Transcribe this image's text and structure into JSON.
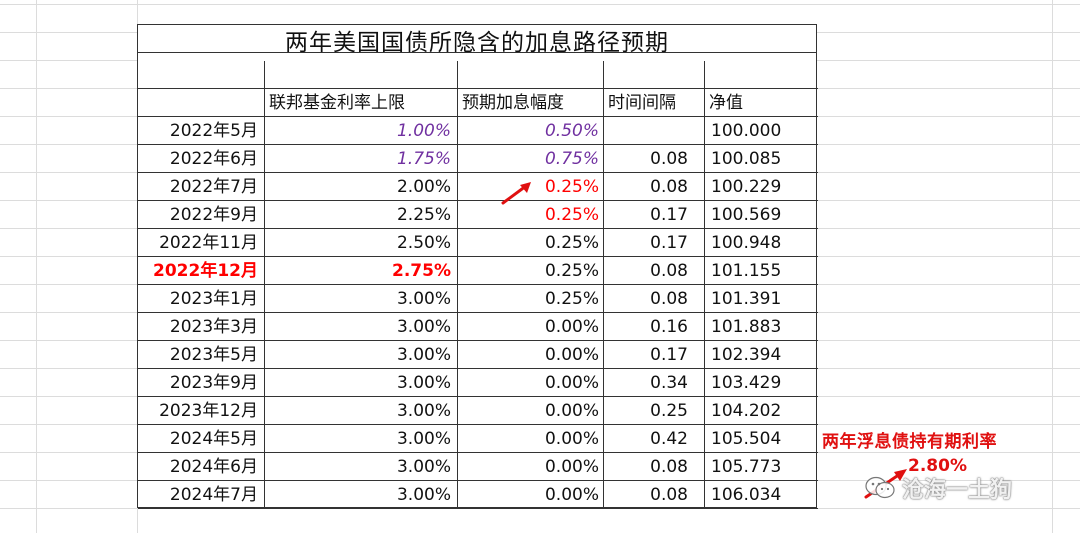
{
  "title": "两年美国国债所隐含的加息路径预期",
  "headers": [
    "",
    "联邦基金利率上限",
    "预期加息幅度",
    "时间间隔",
    "净值"
  ],
  "rows": [
    {
      "date": "2022年5月",
      "rate": "1.00%",
      "hike": "0.50%",
      "interval": "",
      "nav": "100.000"
    },
    {
      "date": "2022年6月",
      "rate": "1.75%",
      "hike": "0.75%",
      "interval": "0.08",
      "nav": "100.085"
    },
    {
      "date": "2022年7月",
      "rate": "2.00%",
      "hike": "0.25%",
      "interval": "0.08",
      "nav": "100.229"
    },
    {
      "date": "2022年9月",
      "rate": "2.25%",
      "hike": "0.25%",
      "interval": "0.17",
      "nav": "100.569"
    },
    {
      "date": "2022年11月",
      "rate": "2.50%",
      "hike": "0.25%",
      "interval": "0.17",
      "nav": "100.948"
    },
    {
      "date": "2022年12月",
      "rate": "2.75%",
      "hike": "0.25%",
      "interval": "0.08",
      "nav": "101.155"
    },
    {
      "date": "2023年1月",
      "rate": "3.00%",
      "hike": "0.25%",
      "interval": "0.08",
      "nav": "101.391"
    },
    {
      "date": "2023年3月",
      "rate": "3.00%",
      "hike": "0.00%",
      "interval": "0.16",
      "nav": "101.883"
    },
    {
      "date": "2023年5月",
      "rate": "3.00%",
      "hike": "0.00%",
      "interval": "0.17",
      "nav": "102.394"
    },
    {
      "date": "2023年9月",
      "rate": "3.00%",
      "hike": "0.00%",
      "interval": "0.34",
      "nav": "103.429"
    },
    {
      "date": "2023年12月",
      "rate": "3.00%",
      "hike": "0.00%",
      "interval": "0.25",
      "nav": "104.202"
    },
    {
      "date": "2024年5月",
      "rate": "3.00%",
      "hike": "0.00%",
      "interval": "0.42",
      "nav": "105.504"
    },
    {
      "date": "2024年6月",
      "rate": "3.00%",
      "hike": "0.00%",
      "interval": "0.08",
      "nav": "105.773"
    },
    {
      "date": "2024年7月",
      "rate": "3.00%",
      "hike": "0.00%",
      "interval": "0.08",
      "nav": "106.034"
    }
  ],
  "annotation": {
    "label": "两年浮息债持有期利率",
    "rate": "2.80%"
  },
  "watermark": "沧海一土狗",
  "colors": {
    "purple": "#7030a0",
    "red": "#ff0000",
    "annotation_red": "#e01010"
  },
  "icons": [
    "red-arrow-icon",
    "wechat-icon"
  ]
}
